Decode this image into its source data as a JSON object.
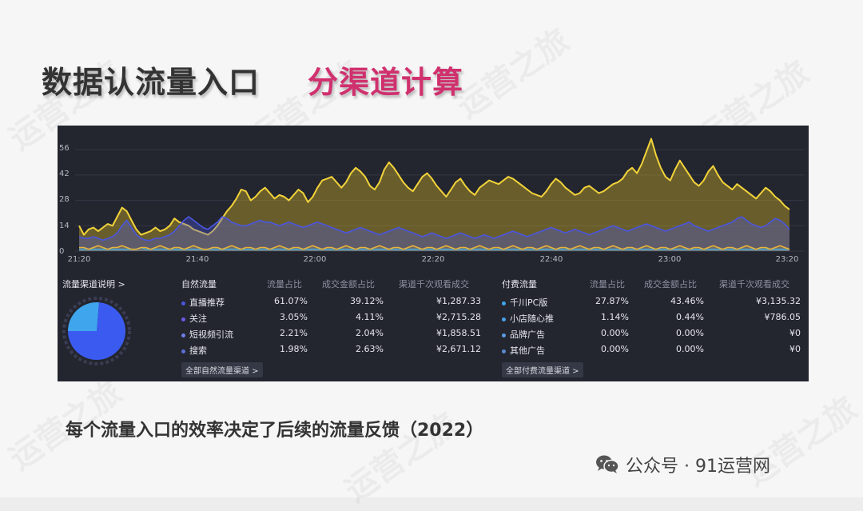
{
  "title": {
    "main": "数据认流量入口",
    "accent": "分渠道计算"
  },
  "chart_data": {
    "type": "area",
    "y_ticks": [
      "56",
      "42",
      "28",
      "14",
      "0"
    ],
    "ylim": [
      0,
      64
    ],
    "x_ticks": [
      "21:20",
      "21:40",
      "22:00",
      "22:20",
      "22:40",
      "23:00",
      "23:20"
    ],
    "series": [
      {
        "color": "#f2d33a",
        "values": [
          14,
          9,
          12,
          13,
          11,
          13,
          15,
          14,
          19,
          24,
          22,
          17,
          12,
          9,
          10,
          11,
          13,
          11,
          12,
          14,
          18,
          16,
          15,
          14,
          12,
          11,
          10,
          9,
          11,
          14,
          18,
          22,
          25,
          29,
          34,
          33,
          28,
          30,
          33,
          35,
          32,
          29,
          31,
          30,
          28,
          31,
          34,
          32,
          27,
          30,
          35,
          39,
          40,
          41,
          38,
          35,
          38,
          43,
          46,
          44,
          41,
          36,
          34,
          38,
          45,
          49,
          46,
          42,
          38,
          35,
          33,
          37,
          41,
          43,
          40,
          36,
          33,
          30,
          34,
          38,
          40,
          36,
          33,
          31,
          35,
          37,
          39,
          38,
          37,
          39,
          41,
          40,
          38,
          36,
          34,
          32,
          31,
          30,
          33,
          37,
          40,
          38,
          35,
          33,
          31,
          32,
          35,
          36,
          34,
          32,
          33,
          35,
          37,
          38,
          40,
          44,
          46,
          43,
          48,
          55,
          62,
          53,
          46,
          41,
          39,
          45,
          50,
          46,
          42,
          38,
          36,
          39,
          44,
          47,
          42,
          38,
          36,
          34,
          37,
          35,
          33,
          31,
          29,
          32,
          35,
          33,
          30,
          28,
          25,
          23
        ]
      },
      {
        "color": "#4a56e2",
        "values": [
          8,
          7,
          7,
          8,
          7,
          6,
          7,
          8,
          10,
          14,
          17,
          13,
          9,
          7,
          6,
          6,
          7,
          7,
          8,
          9,
          11,
          14,
          17,
          19,
          17,
          15,
          13,
          12,
          14,
          16,
          19,
          18,
          16,
          15,
          14,
          14,
          15,
          16,
          17,
          16,
          16,
          15,
          14,
          15,
          16,
          15,
          14,
          13,
          14,
          15,
          16,
          15,
          14,
          13,
          12,
          11,
          10,
          11,
          12,
          13,
          12,
          11,
          10,
          9,
          10,
          11,
          12,
          13,
          12,
          11,
          10,
          9,
          8,
          9,
          10,
          9,
          8,
          7,
          8,
          9,
          10,
          9,
          8,
          7,
          8,
          9,
          8,
          7,
          8,
          9,
          10,
          11,
          10,
          9,
          8,
          9,
          10,
          11,
          12,
          13,
          12,
          11,
          10,
          11,
          12,
          11,
          10,
          9,
          10,
          11,
          12,
          13,
          14,
          13,
          12,
          11,
          12,
          13,
          14,
          15,
          14,
          13,
          12,
          11,
          12,
          13,
          14,
          15,
          16,
          14,
          13,
          12,
          11,
          12,
          13,
          14,
          15,
          16,
          18,
          19,
          17,
          15,
          14,
          13,
          14,
          16,
          18,
          17,
          15,
          12
        ]
      },
      {
        "color": "#33a4e8",
        "values": [
          1,
          1,
          1,
          1,
          1,
          1,
          1,
          1,
          1,
          1,
          1,
          1,
          1,
          2,
          1,
          1,
          1,
          1,
          1,
          1,
          1,
          1,
          1,
          1,
          1,
          1,
          1,
          1,
          1,
          1,
          1,
          1,
          1,
          1,
          1,
          1,
          1,
          1,
          1,
          1,
          1,
          1,
          1,
          1,
          1,
          1,
          1,
          1,
          1,
          1,
          1,
          1,
          1,
          1,
          1,
          1,
          1,
          1,
          1,
          1,
          1,
          1,
          1,
          1,
          1,
          1,
          1,
          1,
          1,
          1,
          1,
          1,
          1,
          1,
          1,
          1,
          1,
          1,
          1,
          1,
          1,
          1,
          1,
          1,
          1,
          1,
          1,
          1,
          1,
          1,
          1,
          1,
          1,
          1,
          1,
          1,
          1,
          1,
          1,
          1,
          1,
          1,
          1,
          1,
          1,
          1,
          1,
          1,
          1,
          1,
          1,
          1,
          1,
          1,
          1,
          1,
          1,
          1,
          1,
          1,
          1,
          1,
          1,
          1,
          1,
          1,
          1,
          1,
          1,
          1,
          1,
          1,
          1,
          1,
          1,
          1,
          1,
          1,
          1,
          1,
          1,
          1,
          1,
          1,
          1,
          1,
          1,
          1,
          1,
          1
        ]
      },
      {
        "color": "#e8b33a",
        "values": [
          2,
          2,
          1,
          2,
          3,
          2,
          1,
          2,
          2,
          3,
          2,
          1,
          1,
          2,
          2,
          1,
          2,
          3,
          2,
          1,
          2,
          2,
          1,
          2,
          3,
          2,
          1,
          1,
          2,
          2,
          1,
          2,
          3,
          2,
          1,
          2,
          2,
          1,
          2,
          2,
          1,
          2,
          3,
          2,
          1,
          2,
          2,
          1,
          2,
          3,
          2,
          1,
          2,
          2,
          1,
          2,
          3,
          2,
          1,
          2,
          2,
          1,
          2,
          3,
          2,
          1,
          2,
          2,
          1,
          2,
          3,
          2,
          1,
          2,
          2,
          1,
          2,
          3,
          2,
          1,
          2,
          2,
          1,
          2,
          3,
          2,
          1,
          2,
          2,
          1,
          2,
          3,
          2,
          1,
          2,
          2,
          1,
          2,
          3,
          2,
          1,
          2,
          2,
          1,
          2,
          3,
          2,
          1,
          2,
          2,
          1,
          2,
          3,
          2,
          1,
          2,
          2,
          1,
          2,
          3,
          2,
          1,
          2,
          2,
          1,
          2,
          3,
          2,
          1,
          2,
          2,
          1,
          2,
          3,
          2,
          1,
          2,
          2,
          1,
          2,
          3,
          2,
          1,
          2,
          2,
          1,
          2,
          3,
          2,
          1
        ]
      }
    ]
  },
  "legend": {
    "title": "流量渠道说明 >"
  },
  "donut": {
    "big_fraction": 0.88,
    "big_color": "#3b5bf0",
    "small_color": "#3fa6ee"
  },
  "natural": {
    "headers": [
      "自然流量",
      "流量占比",
      "成交金额占比",
      "渠道千次观看成交"
    ],
    "rows": [
      {
        "name": "直播推荐",
        "share": "61.07%",
        "gmv_share": "39.12%",
        "per_k": "¥1,287.33",
        "color": "#4a56e2"
      },
      {
        "name": "关注",
        "share": "3.05%",
        "gmv_share": "4.11%",
        "per_k": "¥2,715.28",
        "color": "#6a5ae8"
      },
      {
        "name": "短视频引流",
        "share": "2.21%",
        "gmv_share": "2.04%",
        "per_k": "¥1,858.51",
        "color": "#6f7fe8"
      },
      {
        "name": "搜索",
        "share": "1.98%",
        "gmv_share": "2.63%",
        "per_k": "¥2,671.12",
        "color": "#5a6fd8"
      }
    ],
    "button": "全部自然流量渠道 >"
  },
  "paid": {
    "headers": [
      "付费流量",
      "流量占比",
      "成交金额占比",
      "渠道千次观看成交"
    ],
    "rows": [
      {
        "name": "千川PC版",
        "share": "27.87%",
        "gmv_share": "43.46%",
        "per_k": "¥3,135.32",
        "color": "#3fa6ee"
      },
      {
        "name": "小店随心推",
        "share": "1.14%",
        "gmv_share": "0.44%",
        "per_k": "¥786.05",
        "color": "#4aa0e8"
      },
      {
        "name": "品牌广告",
        "share": "0.00%",
        "gmv_share": "0.00%",
        "per_k": "¥0",
        "color": "#5a9ae0"
      },
      {
        "name": "其他广告",
        "share": "0.00%",
        "gmv_share": "0.00%",
        "per_k": "¥0",
        "color": "#5a8ad0"
      }
    ],
    "button": "全部付费流量渠道 >"
  },
  "caption": "每个流量入口的效率决定了后续的流量反馈（2022）",
  "footer": {
    "text": "公众号 · 91运营网",
    "icon": "wechat-icon"
  },
  "watermark": "运营之旅"
}
